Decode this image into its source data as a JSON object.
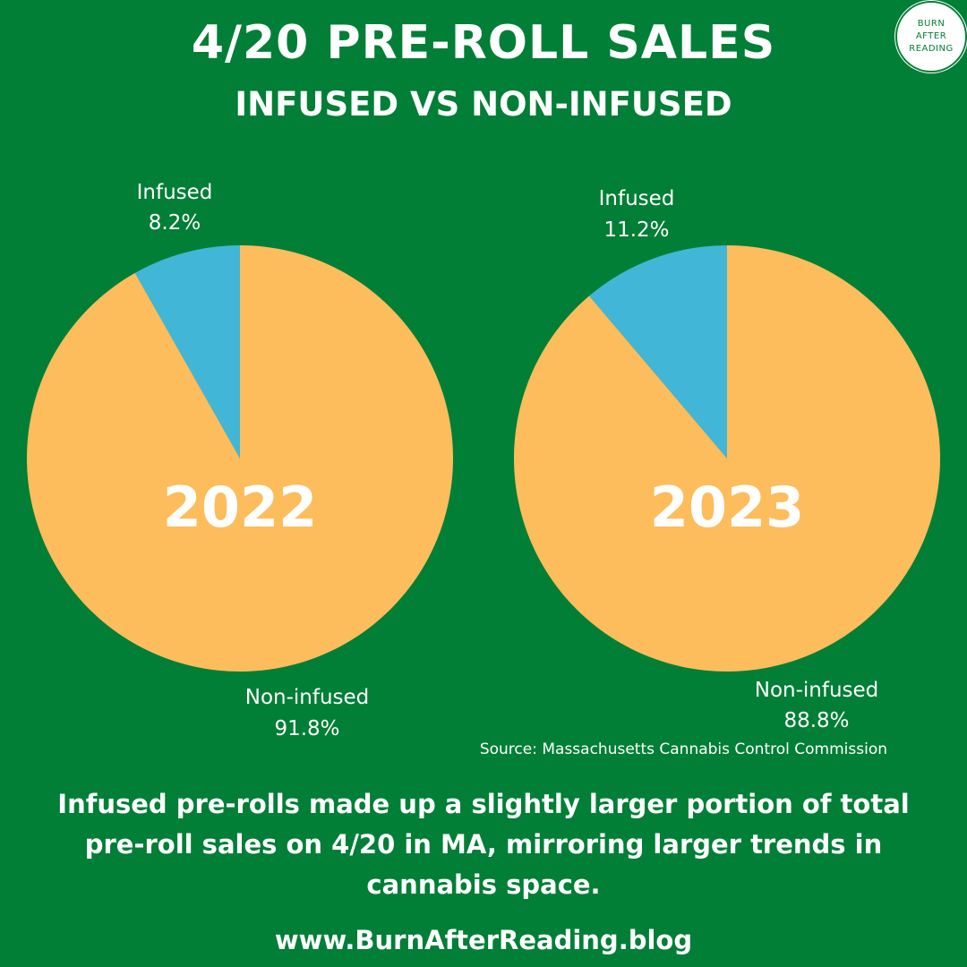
{
  "header": {
    "title": "4/20 PRE-ROLL SALES",
    "subtitle": "INFUSED VS NON-INFUSED"
  },
  "logo": {
    "lines": [
      "BURN",
      "AFTER",
      "READING"
    ]
  },
  "colors": {
    "background": "#017f36",
    "infused": "#41b6d7",
    "non_infused": "#fdbd5c",
    "text": "#ffffff"
  },
  "chart_data": [
    {
      "type": "pie",
      "title": "2022",
      "categories": [
        "Infused",
        "Non-infused"
      ],
      "values": [
        8.2,
        91.8
      ],
      "labels": [
        "8.2%",
        "91.8%"
      ]
    },
    {
      "type": "pie",
      "title": "2023",
      "categories": [
        "Infused",
        "Non-infused"
      ],
      "values": [
        11.2,
        88.8
      ],
      "labels": [
        "11.2%",
        "88.8%"
      ]
    }
  ],
  "source": "Source: Massachusetts Cannabis Control Commission",
  "caption": "Infused pre-rolls made up a slightly larger portion of total pre-roll sales on 4/20 in MA, mirroring larger trends in cannabis space.",
  "website": "www.BurnAfterReading.blog"
}
